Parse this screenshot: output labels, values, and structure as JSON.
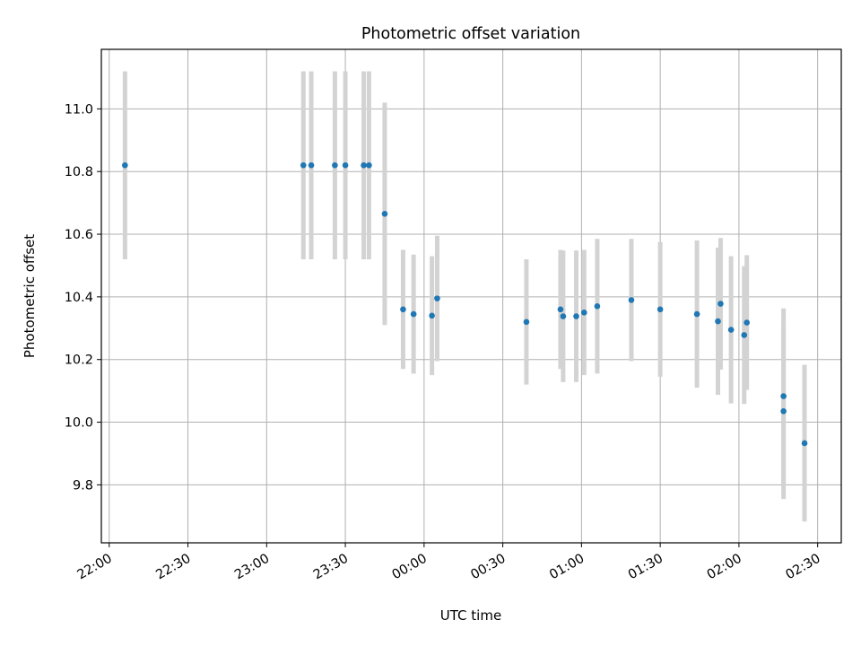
{
  "chart_data": {
    "type": "scatter",
    "title": "Photometric offset variation",
    "xlabel": "UTC time",
    "ylabel": "Photometric offset",
    "x_ticks": [
      "22:00",
      "22:30",
      "23:00",
      "23:30",
      "00:00",
      "00:30",
      "01:00",
      "01:30",
      "02:00",
      "02:30"
    ],
    "y_ticks": [
      "9.8",
      "10.0",
      "10.2",
      "10.4",
      "10.6",
      "10.8",
      "11.0"
    ],
    "xlim": [
      "21:57",
      "02:39"
    ],
    "ylim": [
      9.615,
      11.19
    ],
    "grid": true,
    "colors": {
      "point": "#1f77b4",
      "errorbar": "#d3d3d3",
      "grid": "#b0b0b0"
    },
    "series": [
      {
        "points": [
          {
            "x": "22:06",
            "y": 10.82,
            "err": 0.3
          },
          {
            "x": "23:14",
            "y": 10.82,
            "err": 0.3
          },
          {
            "x": "23:17",
            "y": 10.82,
            "err": 0.3
          },
          {
            "x": "23:26",
            "y": 10.82,
            "err": 0.3
          },
          {
            "x": "23:30",
            "y": 10.82,
            "err": 0.3
          },
          {
            "x": "23:37",
            "y": 10.82,
            "err": 0.3
          },
          {
            "x": "23:39",
            "y": 10.82,
            "err": 0.3
          },
          {
            "x": "23:45",
            "y": 10.665,
            "err": 0.355
          },
          {
            "x": "23:52",
            "y": 10.36,
            "err": 0.19
          },
          {
            "x": "23:56",
            "y": 10.345,
            "err": 0.19
          },
          {
            "x": "00:03",
            "y": 10.34,
            "err": 0.19
          },
          {
            "x": "00:05",
            "y": 10.395,
            "err": 0.2
          },
          {
            "x": "00:39",
            "y": 10.32,
            "err": 0.2
          },
          {
            "x": "00:52",
            "y": 10.36,
            "err": 0.19
          },
          {
            "x": "00:53",
            "y": 10.338,
            "err": 0.21
          },
          {
            "x": "00:58",
            "y": 10.338,
            "err": 0.21
          },
          {
            "x": "01:01",
            "y": 10.35,
            "err": 0.2
          },
          {
            "x": "01:06",
            "y": 10.37,
            "err": 0.215
          },
          {
            "x": "01:19",
            "y": 10.39,
            "err": 0.195
          },
          {
            "x": "01:30",
            "y": 10.36,
            "err": 0.215
          },
          {
            "x": "01:44",
            "y": 10.345,
            "err": 0.235
          },
          {
            "x": "01:52",
            "y": 10.322,
            "err": 0.235
          },
          {
            "x": "01:53",
            "y": 10.378,
            "err": 0.21
          },
          {
            "x": "01:57",
            "y": 10.295,
            "err": 0.235
          },
          {
            "x": "02:02",
            "y": 10.278,
            "err": 0.22
          },
          {
            "x": "02:03",
            "y": 10.318,
            "err": 0.215
          },
          {
            "x": "02:17",
            "y": 10.083,
            "err": 0.28
          },
          {
            "x": "02:17",
            "y": 10.035,
            "err": 0.28
          },
          {
            "x": "02:25",
            "y": 9.933,
            "err": 0.25
          }
        ]
      }
    ]
  }
}
